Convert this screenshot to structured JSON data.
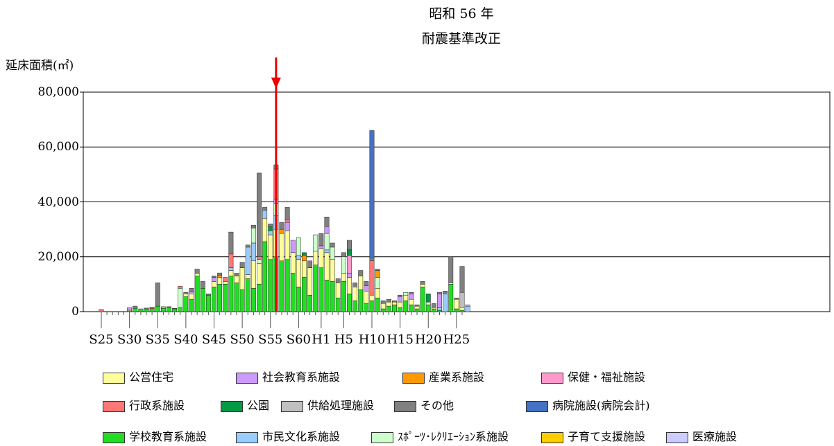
{
  "annotation": {
    "line1": "昭和 56 年",
    "line2": "耐震基準改正"
  },
  "y_axis_label": "延床面積(㎡)",
  "y_ticks": [
    {
      "value": 0,
      "label": "0"
    },
    {
      "value": 20000,
      "label": "20,000"
    },
    {
      "value": 40000,
      "label": "40,000"
    },
    {
      "value": 60000,
      "label": "60,000"
    },
    {
      "value": 80000,
      "label": "80,000"
    }
  ],
  "x_ticks": [
    {
      "year": "S25",
      "label": "S25"
    },
    {
      "year": "S30",
      "label": "S30"
    },
    {
      "year": "S35",
      "label": "S35"
    },
    {
      "year": "S40",
      "label": "S40"
    },
    {
      "year": "S45",
      "label": "S45"
    },
    {
      "year": "S50",
      "label": "S50"
    },
    {
      "year": "S55",
      "label": "S55"
    },
    {
      "year": "S60",
      "label": "S60"
    },
    {
      "year": "H1",
      "label": "H1"
    },
    {
      "year": "H5",
      "label": "H5"
    },
    {
      "year": "H10",
      "label": "H10"
    },
    {
      "year": "H15",
      "label": "H15"
    },
    {
      "year": "H20",
      "label": "H20"
    },
    {
      "year": "H25",
      "label": "H25"
    }
  ],
  "legend": [
    [
      {
        "key": "koei",
        "label": "公営住宅",
        "color": "#ffff99"
      },
      {
        "key": "shakai",
        "label": "社会教育系施設",
        "color": "#cc99ff"
      },
      {
        "key": "sangyo",
        "label": "産業系施設",
        "color": "#ff9900"
      },
      {
        "key": "hoken",
        "label": "保健・福祉施設",
        "color": "#ff99cc"
      }
    ],
    [
      {
        "key": "gyosei",
        "label": "行政系施設",
        "color": "#ff7777"
      },
      {
        "key": "koen",
        "label": "公園",
        "color": "#009944"
      },
      {
        "key": "kyokyu",
        "label": "供給処理施設",
        "color": "#c0c0c0"
      },
      {
        "key": "sonota",
        "label": "その他",
        "color": "#808080"
      },
      {
        "key": "byoin",
        "label": "病院施設(病院会計)",
        "color": "#4472c4"
      }
    ],
    [
      {
        "key": "gakko",
        "label": "学校教育系施設",
        "color": "#22dd22"
      },
      {
        "key": "bunka",
        "label": "市民文化系施設",
        "color": "#99ccff"
      },
      {
        "key": "sports",
        "label": "ｽﾎﾟｰﾂ･ﾚｸﾘｴｰｼｮﾝ系施設",
        "color": "#ccffcc"
      },
      {
        "key": "kosodate",
        "label": "子育て支援施設",
        "color": "#ffcc00"
      },
      {
        "key": "iryo",
        "label": "医療施設",
        "color": "#ccccff"
      }
    ]
  ],
  "chart_data": {
    "type": "bar",
    "stacked": true,
    "ylim": [
      0,
      80000
    ],
    "ylabel": "延床面積(㎡)",
    "marker_year": "S56",
    "series_order": [
      "gakko",
      "koei",
      "bunka",
      "sports",
      "shakai",
      "sangyo",
      "hoken",
      "gyosei",
      "koen",
      "kyokyu",
      "sonota",
      "byoin",
      "kosodate",
      "iryo"
    ],
    "categories": [
      "S25",
      "S26",
      "S27",
      "S28",
      "S29",
      "S30",
      "S31",
      "S32",
      "S33",
      "S34",
      "S35",
      "S36",
      "S37",
      "S38",
      "S39",
      "S40",
      "S41",
      "S42",
      "S43",
      "S44",
      "S45",
      "S46",
      "S47",
      "S48",
      "S49",
      "S50",
      "S51",
      "S52",
      "S53",
      "S54",
      "S55",
      "S56",
      "S57",
      "S58",
      "S59",
      "S60",
      "S61",
      "S62",
      "S63",
      "H1",
      "H2",
      "H3",
      "H4",
      "H5",
      "H6",
      "H7",
      "H8",
      "H9",
      "H10",
      "H11",
      "H12",
      "H13",
      "H14",
      "H15",
      "H16",
      "H17",
      "H18",
      "H19",
      "H20",
      "H21",
      "H22",
      "H23",
      "H24",
      "H25",
      "H26"
    ],
    "bars": [
      {
        "gyosei": 800
      },
      {},
      {},
      {},
      {},
      {
        "gakko": 300,
        "koei": 400,
        "shakai": 800
      },
      {
        "gakko": 1200,
        "sonota": 800
      },
      {
        "gakko": 1000
      },
      {
        "gakko": 1000,
        "sonota": 300
      },
      {
        "gakko": 800,
        "koei": 300,
        "gyosei": 600
      },
      {
        "gakko": 2000,
        "sonota": 8500
      },
      {
        "gakko": 1200,
        "shakai": 600
      },
      {
        "gakko": 1500,
        "sonota": 300
      },
      {
        "gakko": 1000,
        "sonota": 200
      },
      {
        "gakko": 1500,
        "sports": 7000,
        "gyosei": 800
      },
      {
        "gakko": 5500,
        "koei": 1000,
        "sonota": 500
      },
      {
        "gakko": 4500,
        "koei": 2000,
        "shakai": 800,
        "sonota": 1200
      },
      {
        "gakko": 13000,
        "koei": 1000,
        "sonota": 1500
      },
      {
        "gakko": 8500,
        "sonota": 2500
      },
      {
        "gakko": 6000,
        "sonota": 500
      },
      {
        "gakko": 9000,
        "koei": 2000,
        "shakai": 1500,
        "sonota": 500
      },
      {
        "gakko": 10000,
        "koei": 2500,
        "sangyo": 800,
        "sonota": 800
      },
      {
        "gakko": 10000,
        "koei": 1000,
        "gyosei": 1500
      },
      {
        "gakko": 13000,
        "koei": 2000,
        "bunka": 1000,
        "gyosei": 5000,
        "sonota": 8000
      },
      {
        "gakko": 10500,
        "koei": 2500,
        "sonota": 1000
      },
      {
        "gakko": 8000,
        "koei": 8000,
        "sonota": 2000
      },
      {
        "gakko": 12000,
        "koei": 1500,
        "bunka": 10000,
        "sonota": 800
      },
      {
        "gakko": 8500,
        "koei": 10000,
        "bunka": 6500,
        "sports": 5500,
        "sonota": 1000
      },
      {
        "gakko": 10000,
        "koei": 7500,
        "sports": 1500,
        "gyosei": 1000,
        "sonota": 30500
      },
      {
        "gakko": 25500,
        "koei": 8500,
        "bunka": 3000,
        "sonota": 1000
      },
      {
        "gakko": 19000,
        "koei": 9000,
        "bunka": 1500,
        "koen": 1500,
        "sonota": 1000
      },
      {
        "gakko": 20000,
        "koei": 10000,
        "bunka": 5000,
        "shakai": 1500,
        "sports": 4500,
        "gyosei": 11000,
        "sonota": 1500
      },
      {
        "gakko": 18500,
        "koei": 10000,
        "sangyo": 1500,
        "sonota": 2500
      },
      {
        "gakko": 19000,
        "koei": 10500,
        "shakai": 3000,
        "gyosei": 1000,
        "sonota": 4500
      },
      {
        "gakko": 14000,
        "koei": 7500,
        "shakai": 4500
      },
      {
        "gakko": 9000,
        "koei": 10000,
        "bunka": 1500,
        "sports": 6500
      },
      {
        "gakko": 12500,
        "koei": 6000,
        "sangyo": 2000,
        "koen": 1000
      },
      {
        "gakko": 6000,
        "koei": 10000,
        "sonota": 2500
      },
      {
        "gakko": 17000,
        "koei": 5000,
        "sports": 6000
      },
      {
        "gakko": 16000,
        "koei": 7000,
        "shakai": 1000,
        "sonota": 4500
      },
      {
        "gakko": 11500,
        "koei": 10000,
        "bunka": 1000,
        "shakai": 2500,
        "sports": 6000,
        "sonota": 3500
      },
      {
        "gakko": 11000,
        "koei": 8000,
        "sports": 4500,
        "sonota": 1500
      },
      {
        "gakko": 5000,
        "koei": 5500,
        "sonota": 1500
      },
      {
        "gakko": 11000,
        "koei": 3000,
        "sports": 6000,
        "sonota": 1500
      },
      {
        "gakko": 6500,
        "koei": 6000,
        "shakai": 1500,
        "hoken": 6500,
        "koen": 2000,
        "sonota": 3500
      },
      {
        "gakko": 4000,
        "koei": 5000,
        "sonota": 1500
      },
      {
        "gakko": 8000,
        "koei": 5000,
        "sonota": 2000
      },
      {
        "gakko": 3000,
        "koei": 4500,
        "shakai": 2000,
        "sonota": 1500
      },
      {
        "gakko": 4000,
        "koei": 2000,
        "gyosei": 12500,
        "sonota": 1000,
        "byoin": 46500
      },
      {
        "gakko": 5000,
        "koei": 3500,
        "sports": 4000,
        "sangyo": 2500,
        "sonota": 500
      },
      {
        "gakko": 1000,
        "koei": 2000,
        "sonota": 1000
      },
      {
        "gakko": 2000,
        "koei": 1500,
        "sonota": 1000
      },
      {
        "gakko": 2500,
        "koei": 1000,
        "sonota": 500
      },
      {
        "gakko": 1500,
        "koei": 2000,
        "shakai": 2000,
        "sonota": 500
      },
      {
        "gakko": 4000,
        "koei": 2000,
        "sports": 1000
      },
      {
        "gakko": 2500,
        "koei": 2000,
        "shakai": 2000,
        "sonota": 500
      },
      {
        "gakko": 1000,
        "koei": 1000,
        "sonota": 500
      },
      {
        "gakko": 9000,
        "koei": 1000,
        "sonota": 1000
      },
      {
        "gakko": 2500,
        "koen": 3000,
        "sports": 1000
      },
      {
        "gakko": 1000,
        "koei": 500,
        "sonota": 1500
      },
      {
        "gakko": 500,
        "bunka": 1000,
        "shakai": 5000,
        "sonota": 500
      },
      {
        "bunka": 6500,
        "sonota": 1000
      },
      {
        "gakko": 10000,
        "koei": 500,
        "sonota": 9500
      },
      {
        "gakko": 1000,
        "koei": 3500,
        "sonota": 500
      },
      {
        "gakko": 500,
        "koei": 1000,
        "kyokyu": 5500,
        "sonota": 9500
      },
      {
        "bunka": 2000,
        "iryo": 500
      }
    ]
  }
}
